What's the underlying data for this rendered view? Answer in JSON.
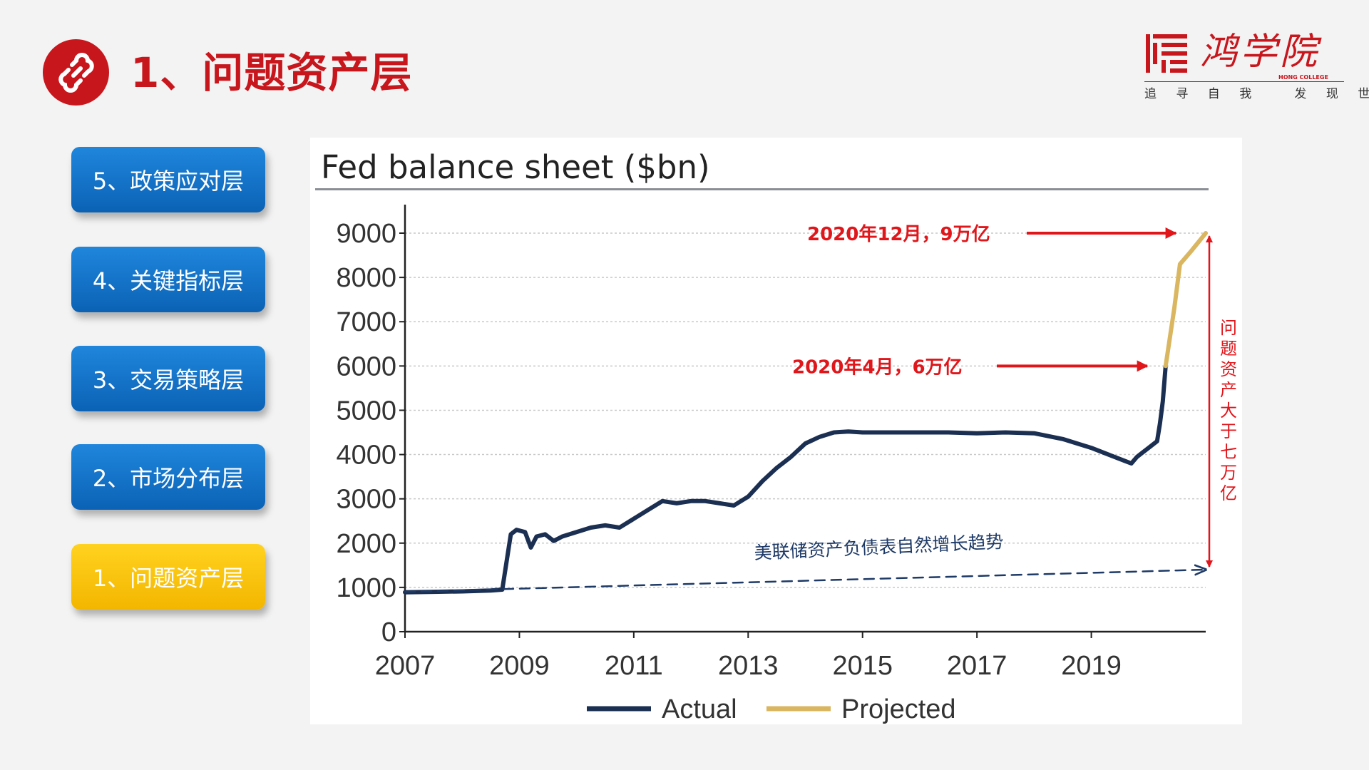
{
  "header": {
    "icon": "link-icon",
    "title": "1、问题资产层"
  },
  "logo": {
    "name": "鸿学院",
    "english": "HONG COLLEGE",
    "slogan": "追 寻 自 我   发 现 世 界"
  },
  "menu": {
    "items": [
      {
        "label": "5、政策应对层",
        "active": false
      },
      {
        "label": "4、关键指标层",
        "active": false
      },
      {
        "label": "3、交易策略层",
        "active": false
      },
      {
        "label": "2、市场分布层",
        "active": false
      },
      {
        "label": "1、问题资产层",
        "active": true
      }
    ]
  },
  "colors": {
    "brand_red": "#c8161d",
    "menu_blue": "#1173cc",
    "menu_active": "#fbc80a",
    "actual": "#1b2f52",
    "projected": "#d9b65f",
    "annotation_red": "#e0161b",
    "trend": "#1e3a66"
  },
  "chart_data": {
    "type": "line",
    "title": "Fed balance sheet ($bn)",
    "xlabel": "",
    "ylabel": "",
    "xlim": [
      2007,
      2021
    ],
    "ylim": [
      0,
      9000
    ],
    "x_ticks": [
      "2007",
      "2009",
      "2011",
      "2013",
      "2015",
      "2017",
      "2019"
    ],
    "y_ticks": [
      "0",
      "1000",
      "2000",
      "3000",
      "4000",
      "5000",
      "6000",
      "7000",
      "8000",
      "9000"
    ],
    "grid": true,
    "legend_position": "bottom",
    "series": [
      {
        "name": "Actual",
        "x": [
          2007.0,
          2007.5,
          2008.0,
          2008.5,
          2008.7,
          2008.85,
          2008.95,
          2009.1,
          2009.2,
          2009.3,
          2009.45,
          2009.6,
          2009.75,
          2010.0,
          2010.25,
          2010.5,
          2010.75,
          2011.0,
          2011.25,
          2011.5,
          2011.75,
          2012.0,
          2012.25,
          2012.5,
          2012.75,
          2013.0,
          2013.25,
          2013.5,
          2013.75,
          2014.0,
          2014.25,
          2014.5,
          2014.75,
          2015.0,
          2015.5,
          2016.0,
          2016.5,
          2017.0,
          2017.5,
          2018.0,
          2018.5,
          2019.0,
          2019.3,
          2019.6,
          2019.7,
          2019.8,
          2020.0,
          2020.1,
          2020.15,
          2020.2,
          2020.25,
          2020.3
        ],
        "values": [
          890,
          900,
          910,
          930,
          950,
          2200,
          2300,
          2250,
          1900,
          2150,
          2200,
          2050,
          2150,
          2250,
          2350,
          2400,
          2350,
          2550,
          2750,
          2950,
          2900,
          2950,
          2950,
          2900,
          2850,
          3050,
          3400,
          3700,
          3950,
          4250,
          4400,
          4500,
          4520,
          4500,
          4500,
          4500,
          4500,
          4480,
          4500,
          4480,
          4350,
          4150,
          4000,
          3850,
          3800,
          3950,
          4150,
          4250,
          4300,
          4700,
          5200,
          6000
        ]
      },
      {
        "name": "Projected",
        "x": [
          2020.3,
          2020.45,
          2020.55,
          2020.75,
          2021.0
        ],
        "values": [
          6000,
          7300,
          8300,
          8600,
          9000
        ]
      },
      {
        "name": "美联储资产负债表自然增长趋势",
        "x": [
          2007.0,
          2021.0
        ],
        "values": [
          900,
          1400
        ]
      }
    ],
    "annotations": [
      {
        "text": "2020年12月，9万亿",
        "x": 2020.9,
        "y": 9000
      },
      {
        "text": "2020年4月，6万亿",
        "x": 2020.25,
        "y": 6000
      },
      {
        "text": "美联储资产负债表自然增长趋势",
        "x": 2015.0,
        "y": 1800
      },
      {
        "text": "问题资产大于七万亿",
        "x": 2021.0,
        "y": 5000
      }
    ]
  }
}
